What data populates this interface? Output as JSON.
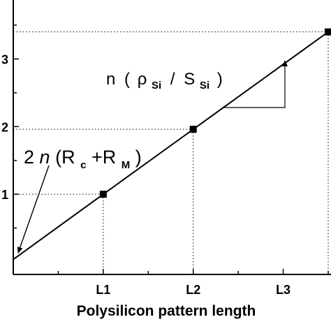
{
  "chart_data": {
    "type": "line",
    "title": "",
    "xlabel": "Polysilicon pattern length",
    "ylabel": "",
    "categories": [
      "L1",
      "L2",
      "L3"
    ],
    "xlim": [
      0,
      3.5
    ],
    "ylim": [
      0,
      3.5
    ],
    "x_tick_labels": [
      "L1",
      "L2",
      "L3"
    ],
    "y_tick_labels": [
      "1",
      "2",
      "3"
    ],
    "series": [
      {
        "x": [
          0,
          1,
          2,
          3.5
        ],
        "y": [
          0.036,
          1.0,
          1.96,
          3.4
        ]
      }
    ],
    "marked_points": [
      {
        "x": 1,
        "y": 1.0
      },
      {
        "x": 2,
        "y": 1.96
      },
      {
        "x": 3.5,
        "y": 3.4
      }
    ],
    "guides": "dotted",
    "annotations": {
      "slope": {
        "n": "n",
        "open": "(",
        "rho": "ρ",
        "rho_sub": "Si",
        "slash": "/",
        "S": "S",
        "S_sub": "Si",
        "close": ")"
      },
      "intercept": {
        "coef": "2",
        "n": "n",
        "open": "(R",
        "sub1": "c",
        "plus": "+R",
        "sub2": "M",
        "close": ")"
      }
    }
  }
}
